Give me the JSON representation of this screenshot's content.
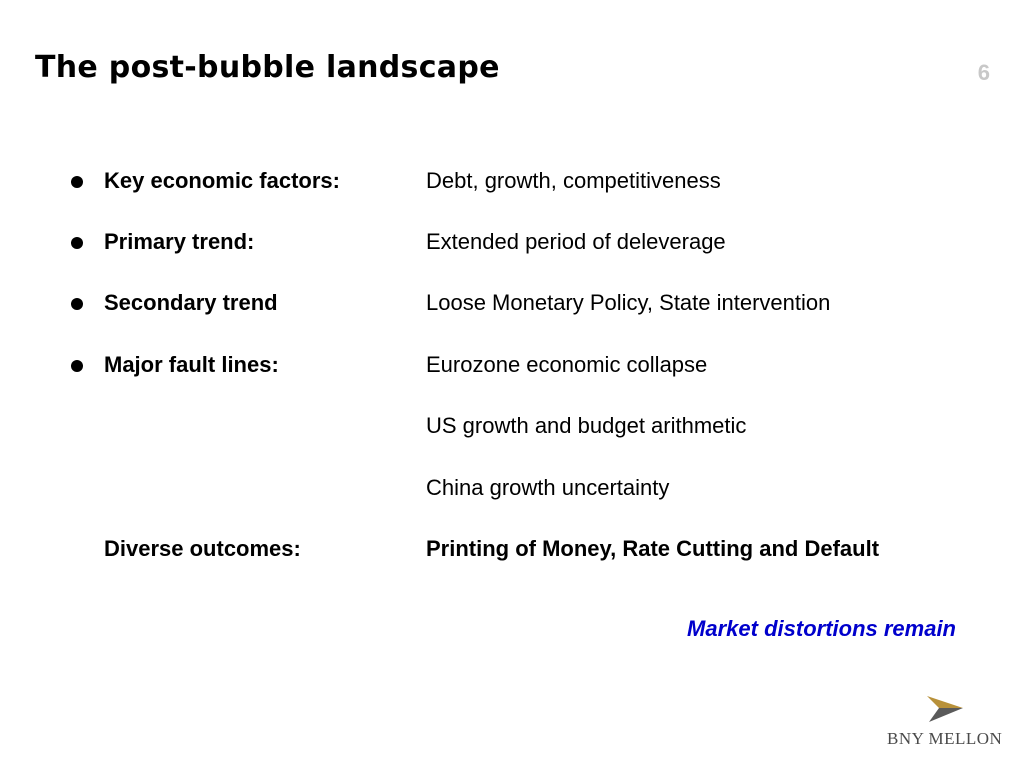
{
  "header": {
    "title": "The post-bubble landscape",
    "page_number": "6"
  },
  "rows": [
    {
      "bullet": true,
      "label": "Key economic factors:",
      "value": "Debt, growth, competitiveness"
    },
    {
      "bullet": true,
      "label": "Primary trend:",
      "value": "Extended period of deleverage"
    },
    {
      "bullet": true,
      "label": "Secondary trend",
      "value": "Loose Monetary Policy, State intervention"
    },
    {
      "bullet": true,
      "label": "Major fault lines:",
      "value": "Eurozone economic collapse"
    },
    {
      "bullet": false,
      "label": "",
      "value": "US growth and budget arithmetic"
    },
    {
      "bullet": false,
      "label": "",
      "value": "China growth uncertainty"
    },
    {
      "bullet": false,
      "label": "Diverse outcomes:",
      "value": "Printing of Money, Rate Cutting and Default"
    }
  ],
  "conclusion": "Market distortions remain",
  "logo": {
    "text": "BNY MELLON",
    "mark_color_gold": "#b8913a",
    "mark_color_dark": "#5a5a5a"
  },
  "colors": {
    "conclusion": "#0000cc",
    "page_number": "#c8c8c8"
  }
}
